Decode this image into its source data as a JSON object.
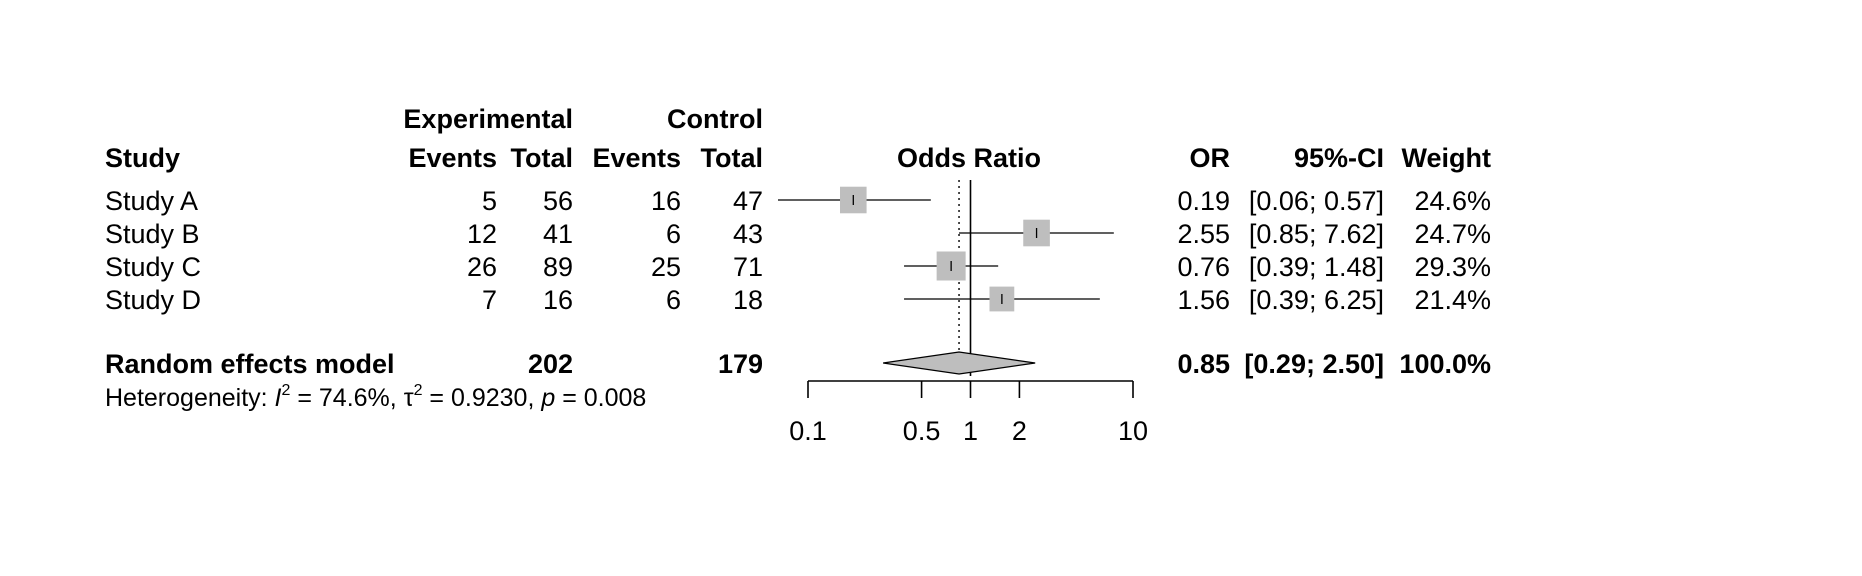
{
  "chart_data": {
    "type": "forest",
    "headers": {
      "study": "Study",
      "experimental": "Experimental",
      "control": "Control",
      "events": "Events",
      "total": "Total",
      "effect": "Odds Ratio",
      "or": "OR",
      "ci": "95%-CI",
      "weight": "Weight"
    },
    "studies": [
      {
        "name": "Study A",
        "exp_events": "5",
        "exp_total": "56",
        "ctrl_events": "16",
        "ctrl_total": "47",
        "or": 0.19,
        "lower": 0.06,
        "upper": 0.57,
        "or_text": "0.19",
        "ci_text": "[0.06; 0.57]",
        "weight_text": "24.6%"
      },
      {
        "name": "Study B",
        "exp_events": "12",
        "exp_total": "41",
        "ctrl_events": "6",
        "ctrl_total": "43",
        "or": 2.55,
        "lower": 0.85,
        "upper": 7.62,
        "or_text": "2.55",
        "ci_text": "[0.85; 7.62]",
        "weight_text": "24.7%"
      },
      {
        "name": "Study C",
        "exp_events": "26",
        "exp_total": "89",
        "ctrl_events": "25",
        "ctrl_total": "71",
        "or": 0.76,
        "lower": 0.39,
        "upper": 1.48,
        "or_text": "0.76",
        "ci_text": "[0.39; 1.48]",
        "weight_text": "29.3%"
      },
      {
        "name": "Study D",
        "exp_events": "7",
        "exp_total": "16",
        "ctrl_events": "6",
        "ctrl_total": "18",
        "or": 1.56,
        "lower": 0.39,
        "upper": 6.25,
        "or_text": "1.56",
        "ci_text": "[0.39; 6.25]",
        "weight_text": "21.4%"
      }
    ],
    "weights": [
      24.6,
      24.7,
      29.3,
      21.4
    ],
    "pooled": {
      "name": "Random effects model",
      "exp_total": "202",
      "ctrl_total": "179",
      "or": 0.85,
      "lower": 0.29,
      "upper": 2.5,
      "or_text": "0.85",
      "ci_text": "[0.29; 2.50]",
      "weight_text": "100.0%"
    },
    "heterogeneity": {
      "prefix": "Heterogeneity: ",
      "i2_symbol": "I",
      "i2_value": " = 74.6%, ",
      "tau2_symbol": "τ",
      "tau2_value": " = 0.9230, ",
      "p_symbol": "p",
      "p_value": " = 0.008"
    },
    "x_axis": {
      "scale": "log",
      "range": [
        0.1,
        10
      ],
      "ticks": [
        0.1,
        0.5,
        1,
        2,
        10
      ],
      "tick_labels": [
        "0.1",
        "0.5",
        "1",
        "2",
        "10"
      ],
      "null_value": 1
    },
    "colors": {
      "square": "#bebebe",
      "diamond": "#bebebe",
      "line": "#000000"
    }
  }
}
